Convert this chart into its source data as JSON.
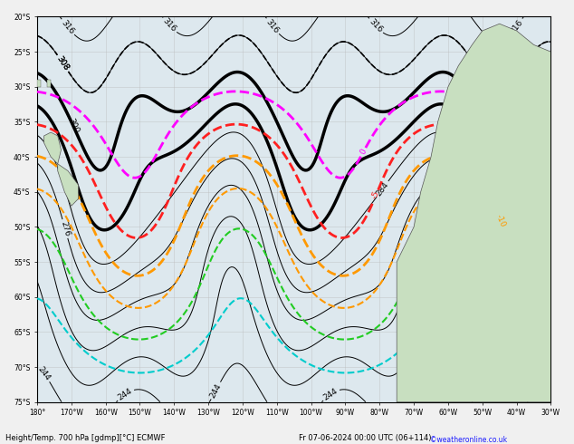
{
  "footer_left": "Height/Temp. 700 hPa [gdmp][°C] ECMWF",
  "footer_right": "Fr 07-06-2024 00:00 UTC (06+114)",
  "footer_credit": "©weatheronline.co.uk",
  "lon_min": -180,
  "lon_max": -30,
  "lat_min": -75,
  "lat_max": -20,
  "grid_color": "#bbbbbb",
  "bg_color": "#e8e8e8",
  "land_color": "#c8dfc0",
  "height_thin_color": "#000000",
  "height_thick_color": "#000000",
  "temp_0_color": "#ff00ff",
  "temp_n5_color": "#ff2020",
  "temp_n10_color": "#ff9900",
  "temp_n15_color": "#ff9900",
  "temp_n20_color": "#22cc22",
  "temp_n25_color": "#00cccc",
  "figsize": [
    6.34,
    4.9
  ],
  "dpi": 100
}
